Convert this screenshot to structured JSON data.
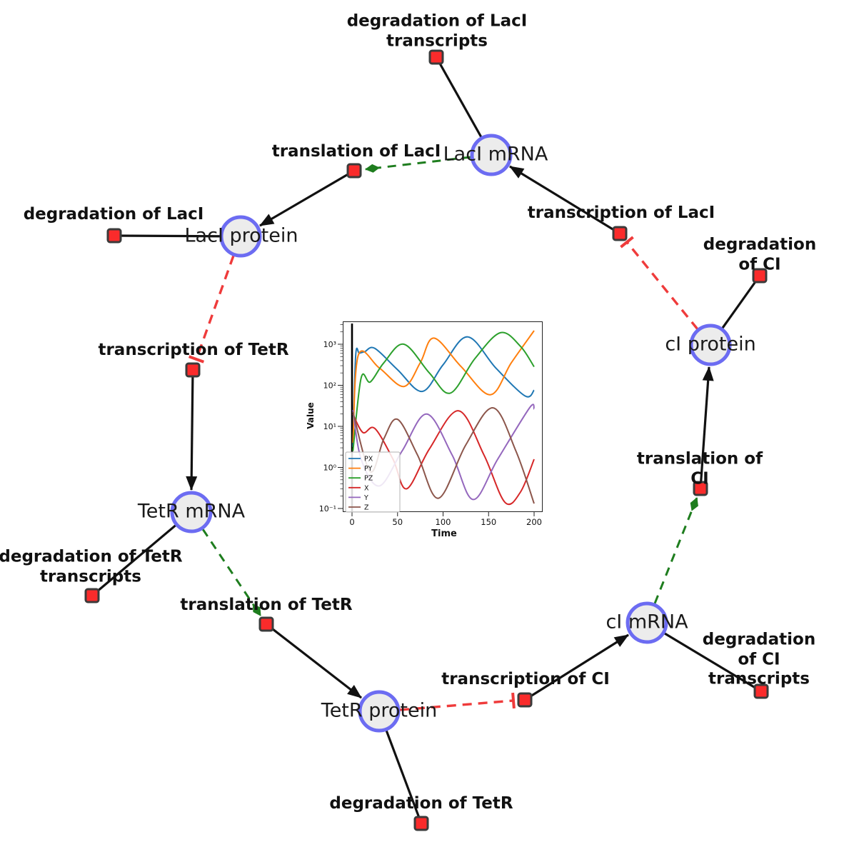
{
  "nodes": {
    "species": [
      {
        "label": "LacI mRNA"
      },
      {
        "label": "LacI protein"
      },
      {
        "label": "TetR mRNA"
      },
      {
        "label": "TetR protein"
      },
      {
        "label": "cI mRNA"
      },
      {
        "label": "cI protein"
      }
    ],
    "reactions": [
      {
        "label": "degradation of LacI\ntranscripts"
      },
      {
        "label": "translation of LacI"
      },
      {
        "label": "transcription of LacI"
      },
      {
        "label": "degradation of LacI"
      },
      {
        "label": "transcription of TetR"
      },
      {
        "label": "degradation of CI"
      },
      {
        "label": "translation of CI"
      },
      {
        "label": "transcription of CI"
      },
      {
        "label": "degradation of CI\ntranscripts"
      },
      {
        "label": "degradation of TetR\ntranscripts"
      },
      {
        "label": "translation of TetR"
      },
      {
        "label": "degradation of TetR"
      }
    ]
  },
  "edges": [
    {
      "from": "LacI mRNA",
      "to": "degradation of LacI transcripts",
      "type": "consumption"
    },
    {
      "from": "LacI mRNA",
      "to": "translation of LacI",
      "type": "modifier"
    },
    {
      "from": "transcription of LacI",
      "to": "LacI mRNA",
      "type": "production"
    },
    {
      "from": "translation of LacI",
      "to": "LacI protein",
      "type": "production"
    },
    {
      "from": "LacI protein",
      "to": "degradation of LacI",
      "type": "consumption"
    },
    {
      "from": "LacI protein",
      "to": "transcription of TetR",
      "type": "inhibition"
    },
    {
      "from": "transcription of TetR",
      "to": "TetR mRNA",
      "type": "production"
    },
    {
      "from": "TetR mRNA",
      "to": "degradation of TetR transcripts",
      "type": "consumption"
    },
    {
      "from": "TetR mRNA",
      "to": "translation of TetR",
      "type": "modifier"
    },
    {
      "from": "translation of TetR",
      "to": "TetR protein",
      "type": "production"
    },
    {
      "from": "TetR protein",
      "to": "degradation of TetR",
      "type": "consumption"
    },
    {
      "from": "TetR protein",
      "to": "transcription of CI",
      "type": "inhibition"
    },
    {
      "from": "transcription of CI",
      "to": "cI mRNA",
      "type": "production"
    },
    {
      "from": "cI mRNA",
      "to": "degradation of CI transcripts",
      "type": "consumption"
    },
    {
      "from": "cI mRNA",
      "to": "translation of CI",
      "type": "modifier"
    },
    {
      "from": "translation of CI",
      "to": "cI protein",
      "type": "production"
    },
    {
      "from": "cI protein",
      "to": "degradation of CI",
      "type": "consumption"
    },
    {
      "from": "cI protein",
      "to": "transcription of LacI",
      "type": "inhibition"
    }
  ],
  "colors": {
    "species_fill": "#ececec",
    "species_border": "#6c6cf2",
    "reaction_fill": "#fa2b2b",
    "reaction_border": "#3b3b3b",
    "edge_black": "#111111",
    "edge_modifier_green": "#1e7d1e",
    "edge_inhibition_red": "#ef3b3b"
  },
  "chart_data": {
    "type": "line",
    "title": "",
    "xlabel": "Time",
    "ylabel": "Value",
    "xticks": [
      0,
      50,
      100,
      150,
      200
    ],
    "yscale": "log",
    "ytick_exponents": [
      -1,
      0,
      1,
      2,
      3
    ],
    "ytick_labels": [
      "10⁻¹",
      "10⁰",
      "10¹",
      "10²",
      "10³"
    ],
    "xlim": [
      -10,
      210
    ],
    "ylim_log10": [
      -1.13,
      3.56
    ],
    "grid": false,
    "legend_position": "lower left",
    "vline_x": 0,
    "series": [
      {
        "name": "PX",
        "color": "#1f77b4",
        "points_log10": [
          [
            1,
            0.5
          ],
          [
            4,
            2.72
          ],
          [
            8,
            2.78
          ],
          [
            14,
            2.82
          ],
          [
            25,
            2.9
          ],
          [
            50,
            2.38
          ],
          [
            77,
            1.85
          ],
          [
            100,
            2.5
          ],
          [
            127,
            3.18
          ],
          [
            158,
            2.42
          ],
          [
            190,
            1.74
          ],
          [
            200,
            1.88
          ]
        ]
      },
      {
        "name": "PY",
        "color": "#ff7f0e",
        "points_log10": [
          [
            1,
            0.6
          ],
          [
            7,
            2.74
          ],
          [
            30,
            2.42
          ],
          [
            57,
            1.97
          ],
          [
            75,
            2.55
          ],
          [
            90,
            3.15
          ],
          [
            120,
            2.45
          ],
          [
            152,
            1.77
          ],
          [
            175,
            2.55
          ],
          [
            200,
            3.33
          ]
        ]
      },
      {
        "name": "PZ",
        "color": "#2ca02c",
        "points_log10": [
          [
            1,
            0.4
          ],
          [
            10,
            2.18
          ],
          [
            20,
            2.08
          ],
          [
            35,
            2.55
          ],
          [
            57,
            3.0
          ],
          [
            85,
            2.3
          ],
          [
            108,
            1.81
          ],
          [
            135,
            2.65
          ],
          [
            163,
            3.28
          ],
          [
            185,
            2.95
          ],
          [
            200,
            2.45
          ]
        ]
      },
      {
        "name": "X",
        "color": "#d62728",
        "points_log10": [
          [
            1,
            1.3
          ],
          [
            12,
            0.85
          ],
          [
            25,
            0.95
          ],
          [
            45,
            0.2
          ],
          [
            60,
            -0.52
          ],
          [
            85,
            0.45
          ],
          [
            117,
            1.38
          ],
          [
            145,
            0.3
          ],
          [
            168,
            -0.85
          ],
          [
            185,
            -0.6
          ],
          [
            200,
            0.2
          ]
        ]
      },
      {
        "name": "Y",
        "color": "#9467bd",
        "points_log10": [
          [
            1,
            1.4
          ],
          [
            10,
            0.2
          ],
          [
            30,
            -0.45
          ],
          [
            55,
            0.4
          ],
          [
            82,
            1.3
          ],
          [
            110,
            0.3
          ],
          [
            133,
            -0.78
          ],
          [
            160,
            0.2
          ],
          [
            195,
            1.45
          ],
          [
            200,
            1.42
          ]
        ]
      },
      {
        "name": "Z",
        "color": "#8c564b",
        "points_log10": [
          [
            1,
            1.35
          ],
          [
            20,
            -0.1
          ],
          [
            35,
            0.7
          ],
          [
            50,
            1.17
          ],
          [
            72,
            0.3
          ],
          [
            95,
            -0.75
          ],
          [
            125,
            0.55
          ],
          [
            155,
            1.45
          ],
          [
            180,
            0.4
          ],
          [
            200,
            -0.88
          ]
        ]
      }
    ]
  }
}
